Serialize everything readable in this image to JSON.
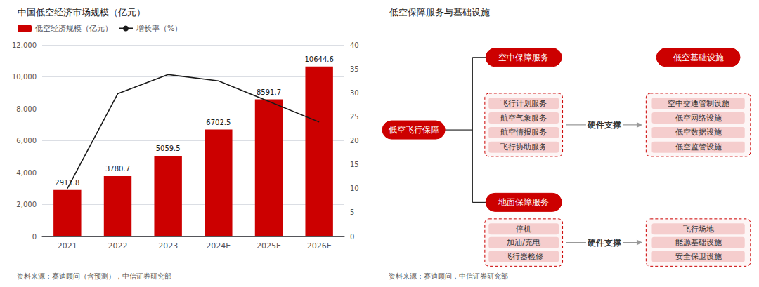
{
  "chart_data": [
    {
      "type": "bar",
      "title": "中国低空经济市场规模（亿元）",
      "annotations": [
        "资料来源：赛迪顾问（含预测），中信证券研究部"
      ],
      "categories": [
        "2021",
        "2022",
        "2023",
        "2024E",
        "2025E",
        "2026E"
      ],
      "series": [
        {
          "name": "低空经济规模（亿元）",
          "type": "bar",
          "color": "#CC0000",
          "values": [
            2911.8,
            3780.7,
            5059.5,
            6702.5,
            8591.7,
            10644.6
          ],
          "data_labels": true
        },
        {
          "name": "增长率（%）",
          "type": "line",
          "color": "#1a1a1a",
          "axis": "y2",
          "values": [
            10.0,
            29.8,
            33.8,
            32.5,
            28.2,
            23.9
          ]
        }
      ],
      "ylim": [
        0,
        12000
      ],
      "yticks": [
        0,
        {
          "value": 2000,
          "label": "2,000"
        },
        {
          "value": 4000,
          "label": "4,000"
        },
        {
          "value": 6000,
          "label": "6,000"
        },
        {
          "value": 8000,
          "label": "8,000"
        },
        {
          "value": 10000,
          "label": "10,000"
        },
        {
          "value": 12000,
          "label": "12,000"
        }
      ],
      "y2lim": [
        0,
        40
      ],
      "y2ticks": [
        0,
        5,
        10,
        15,
        20,
        25,
        30,
        35,
        40
      ],
      "grid": true,
      "legend": "upper left"
    },
    {
      "type": "diagram",
      "title": "低空保障服务与基础设施",
      "annotations": [
        "资料来源：赛迪顾问，中信证券研究部"
      ],
      "color": "#CC0000",
      "root": "低空飞行保障",
      "branches": [
        {
          "name": "空中保障服务",
          "items": [
            "飞行计划服务",
            "航空气象服务",
            "航空情报服务",
            "飞行协助服务"
          ],
          "support": {
            "label": "硬件支撑",
            "name": "低空基础设施",
            "items": [
              "空中交通管制设施",
              "低空网络设施",
              "低空数据设施",
              "低空监管设施"
            ]
          }
        },
        {
          "name": "地面保障服务",
          "items": [
            "停机",
            "加油/充电",
            "飞行器检修"
          ],
          "support": {
            "label": "硬件支撑",
            "items": [
              "飞行场地",
              "能源基础设施",
              "安全保卫设施"
            ]
          }
        }
      ]
    }
  ]
}
